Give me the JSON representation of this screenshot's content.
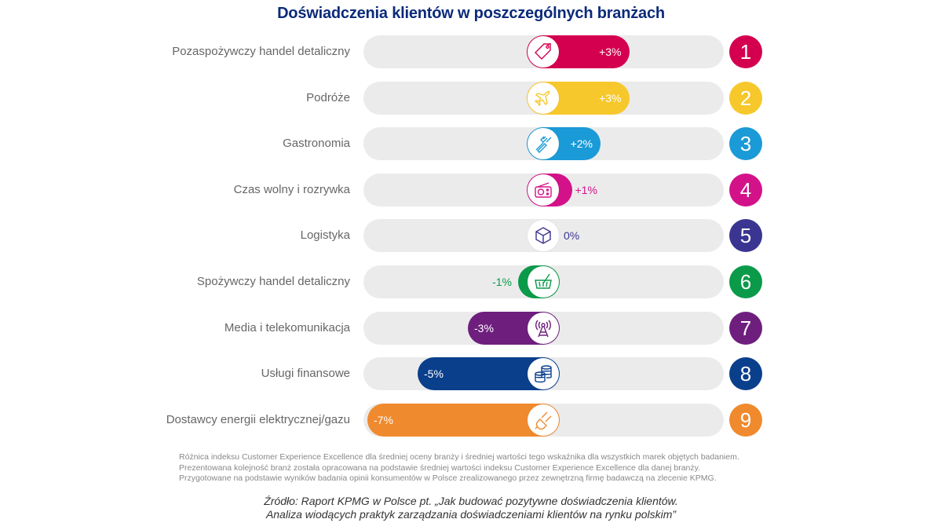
{
  "title": "Doświadczenia klientów w poszczególnych branżach",
  "chart_data": {
    "type": "bar",
    "orientation": "horizontal-diverging",
    "title": "Doświadczenia klientów w poszczególnych branżach",
    "xlabel": "",
    "ylabel": "",
    "unit": "%",
    "categories": [
      "Pozaspożywczy handel detaliczny",
      "Podróże",
      "Gastronomia",
      "Czas wolny i rozrywka",
      "Logistyka",
      "Spożywczy handel detaliczny",
      "Media i telekomunikacja",
      "Usługi finansowe",
      "Dostawcy energii elektrycznej/gazu"
    ],
    "values": [
      3,
      3,
      2,
      1,
      0,
      -1,
      -3,
      -5,
      -7
    ],
    "value_labels": [
      "+3%",
      "+3%",
      "+2%",
      "+1%",
      "0%",
      "-1%",
      "-3%",
      "-5%",
      "-7%"
    ],
    "ranks": [
      "1",
      "2",
      "3",
      "4",
      "5",
      "6",
      "7",
      "8",
      "9"
    ],
    "colors": [
      "#d4004f",
      "#f7c82b",
      "#1a9ad6",
      "#d3128a",
      "#3a3591",
      "#0a9a4a",
      "#6e1f7e",
      "#0a3f8c",
      "#f08a2e"
    ],
    "icons": [
      "price-tag-icon",
      "airplane-icon",
      "cutlery-icon",
      "radio-icon",
      "box-icon",
      "shopping-basket-icon",
      "antenna-tower-icon",
      "coins-icon",
      "plug-icon"
    ],
    "xlim": [
      -7,
      7
    ],
    "grid": false,
    "legend": "none"
  },
  "notes": [
    "Różnica indeksu Customer Experience Excellence dla średniej oceny branży i średniej wartości tego wskaźnika dla wszystkich marek objętych badaniem.",
    "Prezentowana kolejność branż została opracowana na podstawie średniej wartości indeksu Customer Experience Excellence dla danej branży.",
    "Przygotowane na podstawie wyników badania opinii konsumentów w Polsce zrealizowanego przez zewnętrzną firmę badawczą na zlecenie KPMG."
  ],
  "source": [
    "Źródło: Raport KPMG w Polsce pt. „Jak budować pozytywne doświadczenia klientów.",
    "Analiza wiodących praktyk zarządzania doświadczeniami klientów na rynku polskim”"
  ]
}
